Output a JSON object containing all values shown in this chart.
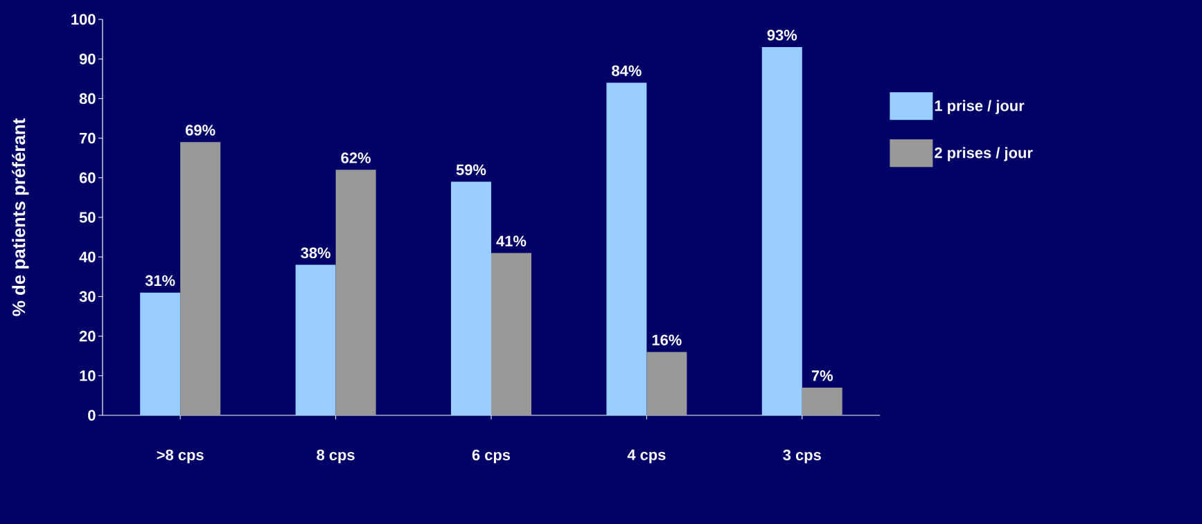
{
  "chart_data": {
    "type": "bar",
    "ylabel": "% de patients préférant",
    "categories": [
      ">8 cps",
      "8 cps",
      "6 cps",
      "4 cps",
      "3 cps"
    ],
    "series": [
      {
        "name": "1 prise / jour",
        "color": "#99ccff",
        "values": [
          31,
          38,
          59,
          84,
          93
        ],
        "value_labels": [
          "31%",
          "38%",
          "59%",
          "84%",
          "93%"
        ]
      },
      {
        "name": "2 prises / jour",
        "color": "#999999",
        "values": [
          69,
          62,
          41,
          16,
          7
        ],
        "value_labels": [
          "69%",
          "62%",
          "41%",
          "16%",
          "7%"
        ]
      }
    ],
    "ylim": [
      0,
      100
    ],
    "yticks": [
      0,
      10,
      20,
      30,
      40,
      50,
      60,
      70,
      80,
      90,
      100
    ],
    "grid": false,
    "legend": "right"
  }
}
